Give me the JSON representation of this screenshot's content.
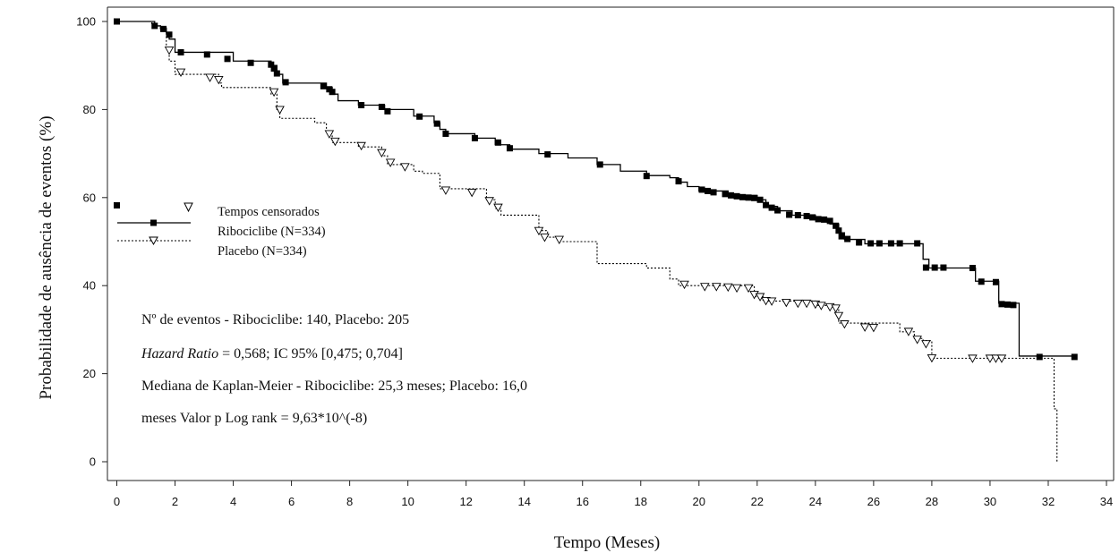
{
  "chart_data": {
    "type": "line",
    "title": "",
    "xlabel": "Tempo (Meses)",
    "ylabel": "Probabilidade de ausência de eventos (%)",
    "xlim": [
      0,
      34
    ],
    "ylim": [
      0,
      100
    ],
    "x_ticks": [
      "0",
      "2",
      "4",
      "6",
      "8",
      "10",
      "12",
      "14",
      "16",
      "18",
      "20",
      "22",
      "24",
      "26",
      "28",
      "30",
      "32",
      "34"
    ],
    "y_ticks": [
      "0",
      "20",
      "40",
      "60",
      "80",
      "100"
    ],
    "grid": false,
    "legend": {
      "placement": "left",
      "censor_label": "Tempos censorados",
      "entries": [
        "Ribociclibe (N=334)",
        "Placebo (N=334)"
      ]
    },
    "annotations": [
      "Nº de eventos - Ribociclibe: 140, Placebo: 205",
      "Hazard Ratio",
      " = 0,568; IC 95% [0,475; 0,704]",
      "Mediana de Kaplan-Meier - Ribociclibe: 25,3 meses; Placebo: 16,0",
      "meses Valor p Log rank = 9,63*10^(-8)"
    ],
    "series": [
      {
        "name": "Ribociclibe (N=334)",
        "line_style": "solid",
        "censor_marker": "filled-square",
        "color": "#000000",
        "steps": [
          [
            0,
            100
          ],
          [
            1.3,
            99
          ],
          [
            1.5,
            98.5
          ],
          [
            1.7,
            97.5
          ],
          [
            1.8,
            96
          ],
          [
            2,
            93
          ],
          [
            4,
            91
          ],
          [
            5.3,
            90
          ],
          [
            5.5,
            88
          ],
          [
            5.7,
            86
          ],
          [
            7.2,
            85
          ],
          [
            7.4,
            83.5
          ],
          [
            7.6,
            82
          ],
          [
            8.3,
            81
          ],
          [
            9.2,
            80
          ],
          [
            10.2,
            78.5
          ],
          [
            10.9,
            77
          ],
          [
            11.1,
            75.5
          ],
          [
            11.3,
            74.5
          ],
          [
            12.3,
            73.5
          ],
          [
            13,
            72
          ],
          [
            13.5,
            71
          ],
          [
            14.5,
            70
          ],
          [
            15.5,
            69
          ],
          [
            16.5,
            67.5
          ],
          [
            17.3,
            66
          ],
          [
            18.2,
            65
          ],
          [
            19,
            64.5
          ],
          [
            19.3,
            63.5
          ],
          [
            19.6,
            62.5
          ],
          [
            20,
            61.5
          ],
          [
            21,
            60.5
          ],
          [
            22,
            59.5
          ],
          [
            22.3,
            58
          ],
          [
            22.7,
            57
          ],
          [
            23.2,
            56
          ],
          [
            24,
            55
          ],
          [
            24.5,
            54
          ],
          [
            24.8,
            52
          ],
          [
            25,
            50.5
          ],
          [
            25.7,
            49.5
          ],
          [
            27.7,
            46
          ],
          [
            27.9,
            44
          ],
          [
            29.5,
            41
          ],
          [
            30.3,
            36
          ],
          [
            31,
            24
          ],
          [
            32.9,
            24
          ]
        ],
        "censors": [
          [
            0,
            100
          ],
          [
            1.3,
            99
          ],
          [
            1.6,
            98.3
          ],
          [
            1.8,
            97
          ],
          [
            2.2,
            93
          ],
          [
            3.1,
            92.5
          ],
          [
            3.8,
            91.5
          ],
          [
            4.6,
            90.6
          ],
          [
            5.3,
            90.2
          ],
          [
            5.4,
            89.3
          ],
          [
            5.5,
            88.2
          ],
          [
            5.8,
            86.2
          ],
          [
            7.1,
            85.3
          ],
          [
            7.3,
            84.6
          ],
          [
            7.4,
            84
          ],
          [
            8.4,
            81
          ],
          [
            9.1,
            80.6
          ],
          [
            9.3,
            79.6
          ],
          [
            10.4,
            78.4
          ],
          [
            11,
            76.8
          ],
          [
            11.3,
            74.5
          ],
          [
            12.3,
            73.5
          ],
          [
            13.1,
            72.5
          ],
          [
            13.5,
            71.2
          ],
          [
            14.8,
            69.8
          ],
          [
            16.6,
            67.5
          ],
          [
            18.2,
            64.9
          ],
          [
            19.3,
            63.7
          ],
          [
            20.1,
            61.8
          ],
          [
            20.3,
            61.5
          ],
          [
            20.5,
            61.2
          ],
          [
            20.9,
            60.8
          ],
          [
            21.1,
            60.5
          ],
          [
            21.3,
            60.3
          ],
          [
            21.5,
            60.1
          ],
          [
            21.7,
            60
          ],
          [
            21.9,
            59.9
          ],
          [
            22.1,
            59.5
          ],
          [
            22.3,
            58.3
          ],
          [
            22.5,
            57.7
          ],
          [
            22.7,
            57.1
          ],
          [
            23.1,
            56.1
          ],
          [
            23.4,
            56
          ],
          [
            23.7,
            55.8
          ],
          [
            23.9,
            55.5
          ],
          [
            24.1,
            55.1
          ],
          [
            24.3,
            55
          ],
          [
            24.5,
            54.7
          ],
          [
            24.7,
            53.6
          ],
          [
            24.8,
            52.5
          ],
          [
            24.9,
            51.2
          ],
          [
            25.1,
            50.6
          ],
          [
            25.5,
            49.8
          ],
          [
            25.9,
            49.6
          ],
          [
            26.2,
            49.6
          ],
          [
            26.6,
            49.6
          ],
          [
            26.9,
            49.6
          ],
          [
            27.5,
            49.6
          ],
          [
            27.8,
            44.1
          ],
          [
            28.1,
            44.1
          ],
          [
            28.4,
            44.1
          ],
          [
            29.4,
            44
          ],
          [
            29.7,
            40.9
          ],
          [
            30.2,
            40.8
          ],
          [
            30.4,
            35.8
          ],
          [
            30.6,
            35.7
          ],
          [
            30.8,
            35.6
          ],
          [
            31.7,
            23.8
          ],
          [
            32.9,
            23.8
          ]
        ]
      },
      {
        "name": "Placebo (N=334)",
        "line_style": "dotted",
        "censor_marker": "open-triangle",
        "color": "#000000",
        "steps": [
          [
            0,
            100
          ],
          [
            1.2,
            99
          ],
          [
            1.5,
            98
          ],
          [
            1.7,
            94
          ],
          [
            1.8,
            91
          ],
          [
            2,
            88
          ],
          [
            3.5,
            86
          ],
          [
            3.6,
            85
          ],
          [
            5.3,
            83.5
          ],
          [
            5.5,
            80
          ],
          [
            5.6,
            78
          ],
          [
            6.8,
            77
          ],
          [
            7.2,
            74.5
          ],
          [
            7.4,
            72.5
          ],
          [
            8.3,
            71.5
          ],
          [
            9.1,
            69.5
          ],
          [
            9.3,
            67.5
          ],
          [
            10.2,
            66
          ],
          [
            10.5,
            65.5
          ],
          [
            11.1,
            62
          ],
          [
            12.7,
            59.5
          ],
          [
            13,
            57.5
          ],
          [
            13.2,
            56
          ],
          [
            14.5,
            52.5
          ],
          [
            14.8,
            51
          ],
          [
            15.2,
            50
          ],
          [
            16.5,
            45
          ],
          [
            18.2,
            44
          ],
          [
            19,
            41.5
          ],
          [
            19.3,
            40
          ],
          [
            21.9,
            37.5
          ],
          [
            22.2,
            36.5
          ],
          [
            24,
            35.5
          ],
          [
            24.8,
            31.5
          ],
          [
            26.9,
            29.5
          ],
          [
            27.4,
            28
          ],
          [
            27.7,
            27.5
          ],
          [
            28,
            23.5
          ],
          [
            32.2,
            23.5
          ],
          [
            32.2,
            12
          ],
          [
            32.3,
            0
          ]
        ],
        "censors": [
          [
            1.8,
            93.5
          ],
          [
            2.2,
            88.5
          ],
          [
            3.2,
            87.3
          ],
          [
            3.5,
            86.8
          ],
          [
            5.4,
            84
          ],
          [
            5.6,
            80
          ],
          [
            7.3,
            74.5
          ],
          [
            7.5,
            72.8
          ],
          [
            8.4,
            71.8
          ],
          [
            9.1,
            70.2
          ],
          [
            9.4,
            68
          ],
          [
            9.9,
            67
          ],
          [
            11.3,
            61.7
          ],
          [
            12.2,
            61.2
          ],
          [
            12.8,
            59.3
          ],
          [
            13.1,
            57.8
          ],
          [
            14.5,
            52.5
          ],
          [
            14.7,
            51
          ],
          [
            15.2,
            50.5
          ],
          [
            19.5,
            40.3
          ],
          [
            20.2,
            39.8
          ],
          [
            20.6,
            39.8
          ],
          [
            21,
            39.7
          ],
          [
            21.3,
            39.5
          ],
          [
            21.7,
            39.5
          ],
          [
            21.9,
            38
          ],
          [
            22.1,
            37.5
          ],
          [
            22.3,
            36.6
          ],
          [
            22.5,
            36.5
          ],
          [
            23,
            36.2
          ],
          [
            23.4,
            36
          ],
          [
            23.7,
            36
          ],
          [
            24,
            35.8
          ],
          [
            24.2,
            35.5
          ],
          [
            24.5,
            35.2
          ],
          [
            24.7,
            34.9
          ],
          [
            24.8,
            33.2
          ],
          [
            25,
            31.3
          ],
          [
            25.7,
            30.6
          ],
          [
            26,
            30.5
          ],
          [
            27.2,
            29.6
          ],
          [
            27.5,
            27.8
          ],
          [
            27.8,
            26.8
          ],
          [
            28,
            23.6
          ],
          [
            29.4,
            23.5
          ],
          [
            30,
            23.5
          ],
          [
            30.2,
            23.5
          ],
          [
            30.4,
            23.5
          ]
        ]
      }
    ]
  }
}
